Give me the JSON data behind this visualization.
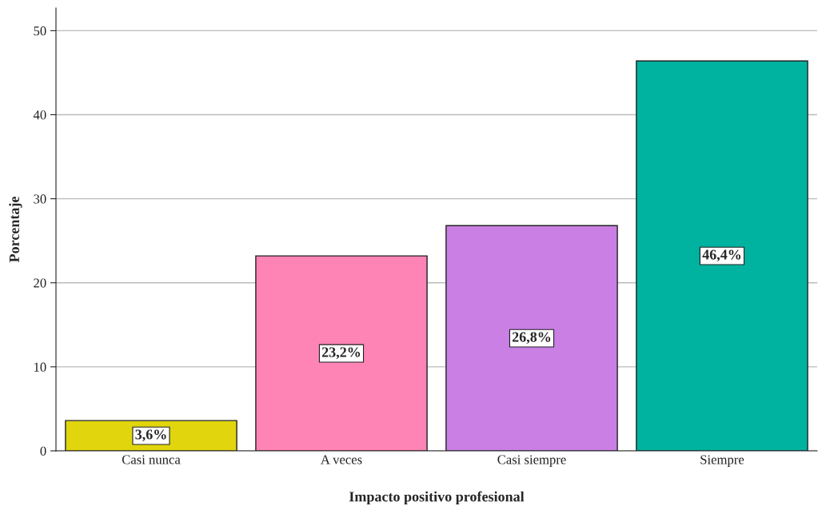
{
  "chart_data": {
    "type": "bar",
    "xlabel": "Impacto positivo profesional",
    "ylabel": "Porcentaje",
    "categories": [
      "Casi nunca",
      "A veces",
      "Casi siempre",
      "Siempre"
    ],
    "values": [
      3.6,
      23.2,
      26.8,
      46.4
    ],
    "colors": [
      "#e1d50d",
      "#fd84b5",
      "#c97fe3",
      "#00b2a0"
    ],
    "value_labels": [
      "3,6%",
      "23,2%",
      "26,8%",
      "46,4%"
    ],
    "ylim": [
      0,
      52.7
    ],
    "yticks": [
      0,
      10,
      20,
      30,
      40,
      50
    ],
    "grid": "y"
  }
}
